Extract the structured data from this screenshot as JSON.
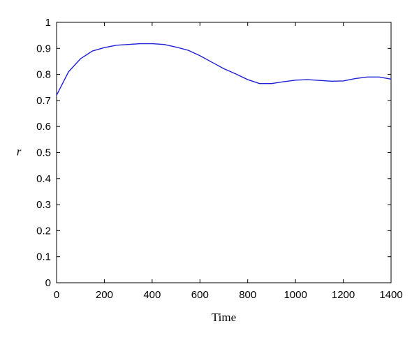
{
  "chart_data": {
    "type": "line",
    "title": "",
    "xlabel": "Time",
    "ylabel": "r",
    "xlim": [
      0,
      1400
    ],
    "ylim": [
      0,
      1
    ],
    "x_ticks": [
      0,
      200,
      400,
      600,
      800,
      1000,
      1200,
      1400
    ],
    "y_ticks": [
      0,
      0.1,
      0.2,
      0.3,
      0.4,
      0.5,
      0.6,
      0.7,
      0.8,
      0.9,
      1
    ],
    "grid": false,
    "legend": "none",
    "series": [
      {
        "color": "#1f1fd6",
        "x": [
          0,
          50,
          100,
          150,
          200,
          250,
          300,
          350,
          400,
          450,
          500,
          550,
          600,
          650,
          700,
          750,
          800,
          850,
          900,
          950,
          1000,
          1050,
          1100,
          1150,
          1200,
          1250,
          1300,
          1350,
          1400
        ],
        "y": [
          0.72,
          0.81,
          0.86,
          0.89,
          0.903,
          0.912,
          0.915,
          0.918,
          0.918,
          0.915,
          0.905,
          0.893,
          0.872,
          0.847,
          0.822,
          0.802,
          0.78,
          0.765,
          0.765,
          0.772,
          0.778,
          0.78,
          0.777,
          0.774,
          0.775,
          0.784,
          0.79,
          0.79,
          0.782
        ]
      }
    ]
  }
}
